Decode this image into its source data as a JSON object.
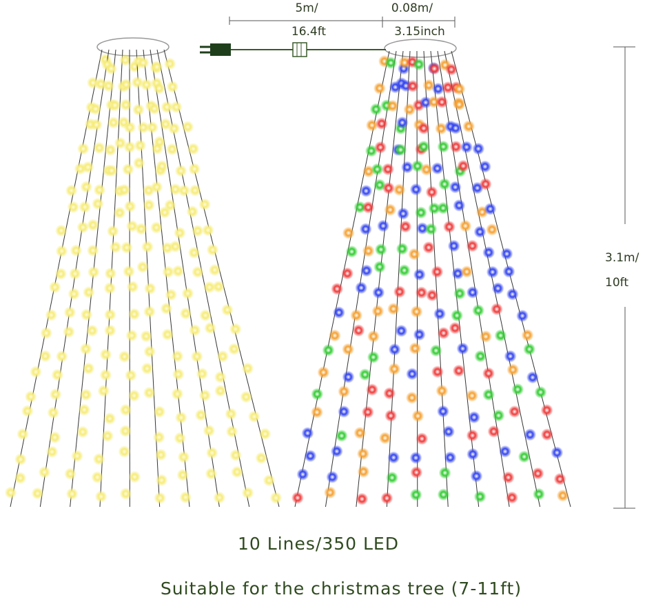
{
  "dimensions": {
    "cable_length": [
      "5m/",
      "16.4ft"
    ],
    "spacing": [
      "0.08m/",
      "3.15inch"
    ],
    "height": [
      "3.1m/",
      "10ft"
    ]
  },
  "caption": {
    "count": "10 Lines/350 LED",
    "note": "Suitable for the christmas tree (7-11ft)"
  }
}
